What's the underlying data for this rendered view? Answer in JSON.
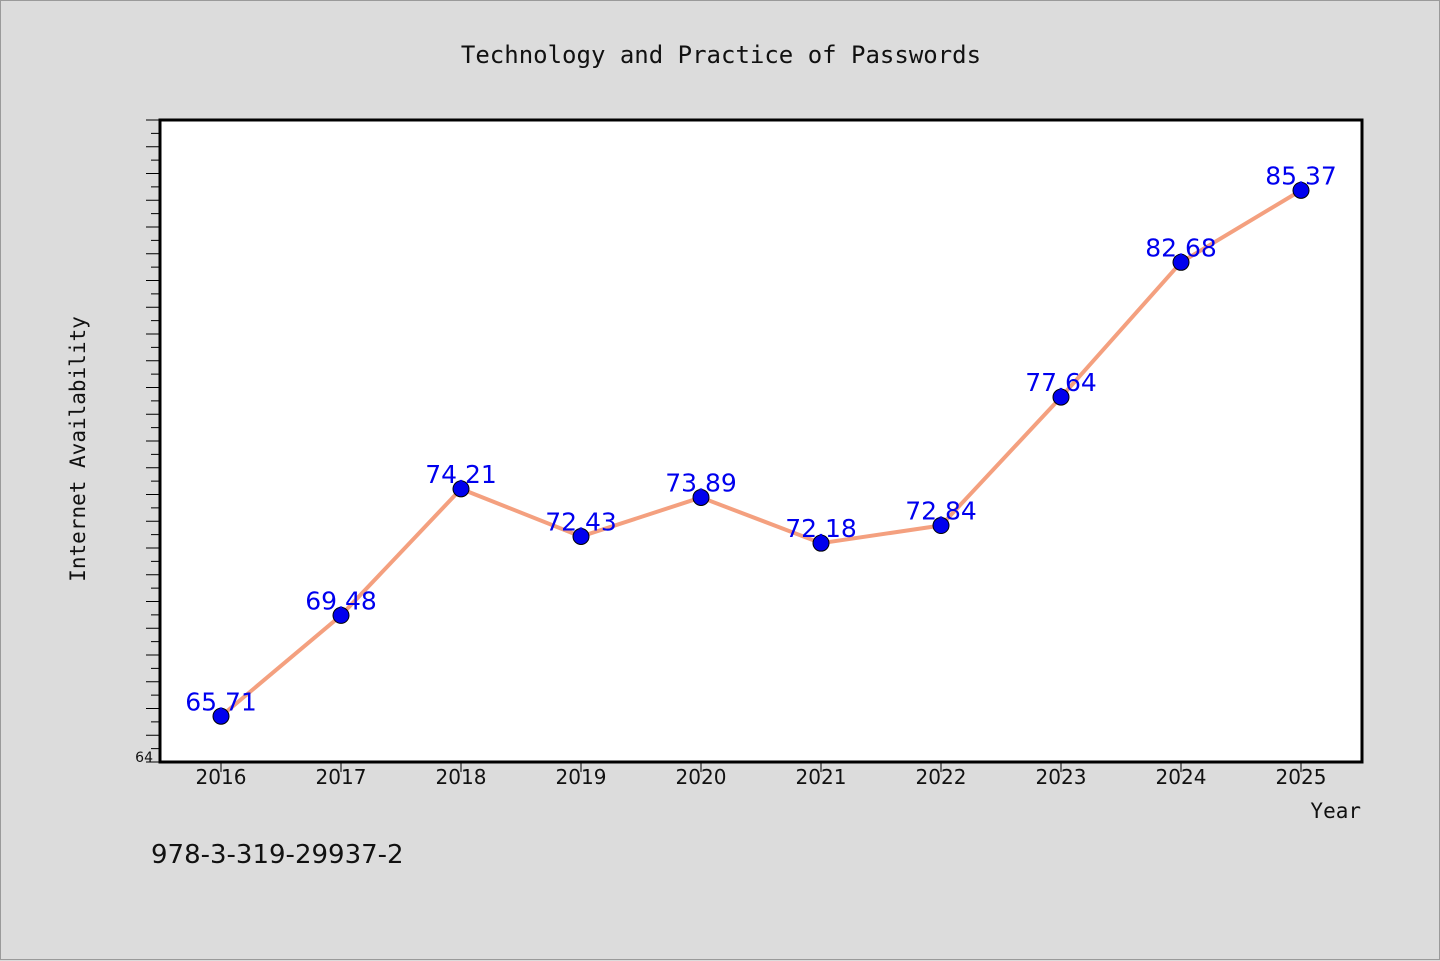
{
  "chart_data": {
    "type": "line",
    "title": "Technology and Practice of Passwords",
    "xlabel": "Year",
    "ylabel": "Internet Availability",
    "categories": [
      "2016",
      "2017",
      "2018",
      "2019",
      "2020",
      "2021",
      "2022",
      "2023",
      "2024",
      "2025"
    ],
    "series": [
      {
        "values": [
          65.71,
          69.48,
          74.21,
          72.43,
          73.89,
          72.18,
          72.84,
          77.64,
          82.68,
          85.37
        ],
        "labels": [
          "65.71",
          "69.48",
          "74.21",
          "72.43",
          "73.89",
          "72.18",
          "72.84",
          "77.64",
          "82.68",
          "85.37"
        ],
        "line_color": "#f4a07f",
        "marker_color": "#0000ee",
        "label_color": "#0000ee"
      }
    ],
    "ylim": [
      64,
      88
    ],
    "y_tick_labels": [
      "64"
    ],
    "grid": false,
    "legend": "none"
  },
  "footer_text": "978-3-319-29937-2"
}
